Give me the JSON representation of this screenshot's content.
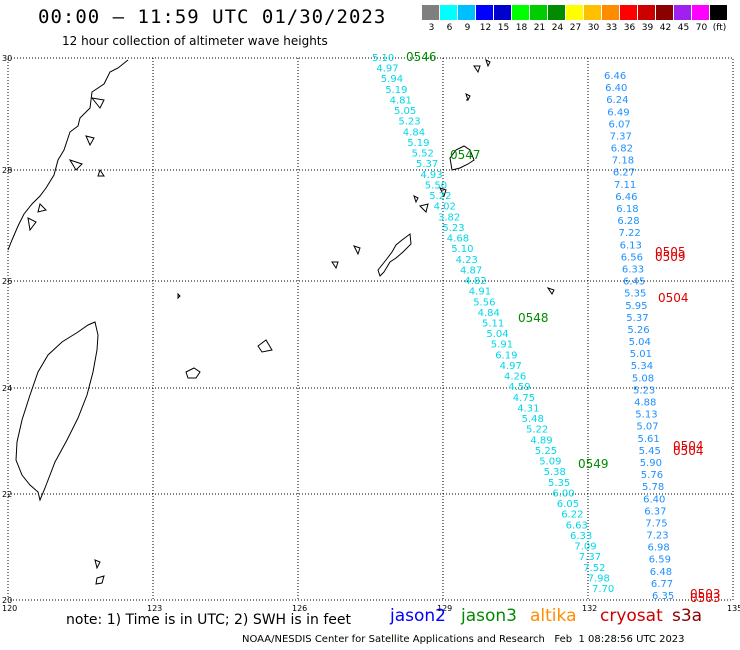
{
  "title": "00:00 – 11:59 UTC 01/30/2023",
  "subtitle": "12 hour collection of altimeter wave heights",
  "legend": {
    "colors": [
      "#7f7f7f",
      "#00ffff",
      "#00bfff",
      "#0000ff",
      "#0000cd",
      "#00ff00",
      "#00cd00",
      "#008b00",
      "#ffff00",
      "#ffc000",
      "#ff8c00",
      "#ff0000",
      "#cd0000",
      "#8b0000",
      "#a020f0",
      "#ff00ff",
      "#000000"
    ],
    "labels": [
      "3",
      "6",
      "9",
      "12",
      "15",
      "18",
      "21",
      "24",
      "27",
      "30",
      "33",
      "36",
      "39",
      "42",
      "45",
      "70",
      "(ft)"
    ]
  },
  "axes": {
    "lat_labels": [
      "30",
      "28",
      "26",
      "24",
      "22",
      "20"
    ],
    "lon_labels": [
      "120",
      "123",
      "126",
      "129",
      "132",
      "135"
    ]
  },
  "track_cyan": [
    "5.10",
    "4.97",
    "5.94",
    "5.19",
    "4.81",
    "5.05",
    "5.23",
    "4.84",
    "5.19",
    "5.52",
    "5.37",
    "4.93",
    "5.50",
    "5.22",
    "4.02",
    "3.82",
    "5.23",
    "4.68",
    "5.10",
    "4.23",
    "4.87",
    "4.82",
    "4.91",
    "5.56",
    "4.84",
    "5.11",
    "5.04",
    "5.91",
    "6.19",
    "4.97",
    "4.26",
    "4.59",
    "4.75",
    "4.31",
    "5.48",
    "5.22",
    "4.89",
    "5.25",
    "5.09",
    "5.38",
    "5.35",
    "6.00",
    "6.05",
    "6.22",
    "6.63",
    "6.33",
    "7.09",
    "7.37",
    "7.52",
    "7.98",
    "7.70"
  ],
  "track_blue": [
    "6.46",
    "6.40",
    "6.24",
    "6.49",
    "6.07",
    "7.37",
    "6.82",
    "7.18",
    "6.27",
    "7.11",
    "6.46",
    "6.18",
    "6.28",
    "7.22",
    "6.13",
    "6.56",
    "6.33",
    "6.45",
    "5.35",
    "5.95",
    "5.37",
    "5.26",
    "5.04",
    "5.01",
    "5.34",
    "5.08",
    "5.23",
    "4.88",
    "5.13",
    "5.07",
    "5.61",
    "5.45",
    "5.90",
    "5.76",
    "5.78",
    "6.40",
    "6.37",
    "7.75",
    "7.23",
    "6.98",
    "6.59",
    "6.48",
    "6.77",
    "6.35"
  ],
  "time_labels_green": [
    {
      "text": "0546"
    },
    {
      "text": "0547"
    },
    {
      "text": "0548"
    },
    {
      "text": "0549"
    }
  ],
  "time_labels_red": [
    {
      "text": "0505"
    },
    {
      "text": "0509"
    },
    {
      "text": "0504"
    },
    {
      "text": "0504"
    },
    {
      "text": "0504"
    },
    {
      "text": "0503"
    },
    {
      "text": "0503"
    }
  ],
  "note": "note: 1) Time is in UTC; 2) SWH is in feet",
  "satellites": [
    {
      "name": "jason2",
      "color": "#0000ff"
    },
    {
      "name": "jason3",
      "color": "#008b00"
    },
    {
      "name": "altika",
      "color": "#ff8c00"
    },
    {
      "name": "cryosat",
      "color": "#cd0000"
    },
    {
      "name": "s3a",
      "color": "#8b0000"
    }
  ],
  "credit": "NOAA/NESDIS Center for Satellite Applications and Research   Feb  1 08:28:56 UTC 2023"
}
